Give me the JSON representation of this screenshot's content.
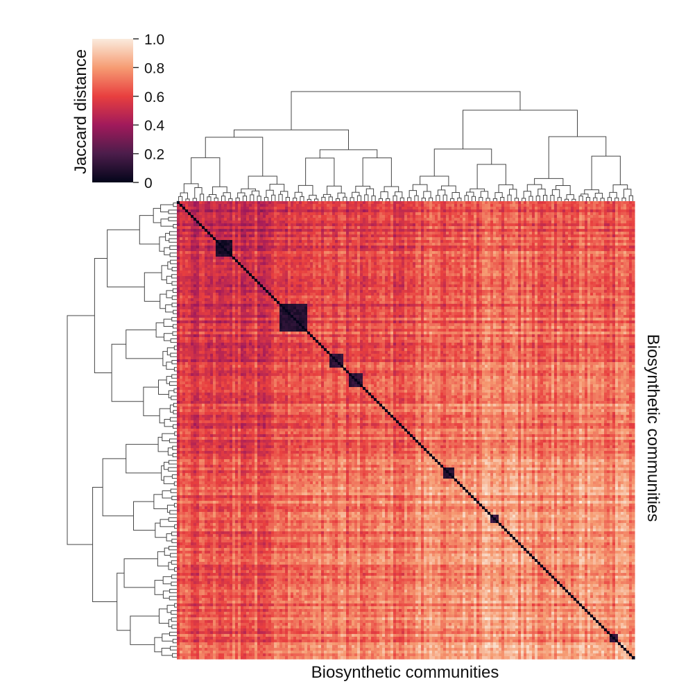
{
  "chart_data": {
    "type": "heatmap",
    "subtype": "clustermap",
    "title": "",
    "xlabel": "Biosynthetic communities",
    "ylabel": "Biosynthetic communities",
    "ylabel_position": "right",
    "colorbar": {
      "label": "Jaccard distance",
      "range": [
        0,
        1.0
      ],
      "ticks": [
        0,
        0.2,
        0.4,
        0.6,
        0.8,
        1.0
      ],
      "tick_labels": [
        "0",
        "0.2",
        "0.4",
        "0.6",
        "0.8",
        "1.0"
      ],
      "placement": "top-left",
      "colormap_stops": [
        "#03051a",
        "#4c1d4b",
        "#a11a5b",
        "#e83f3f",
        "#f69c73",
        "#faebdd"
      ]
    },
    "dendrograms": [
      "top",
      "left"
    ],
    "diagonal_value": 0,
    "blocks": [
      {
        "rows": [
          0.08,
          0.12
        ],
        "cols": [
          0.08,
          0.12
        ],
        "value": 0.02
      },
      {
        "rows": [
          0.22,
          0.28
        ],
        "cols": [
          0.22,
          0.28
        ],
        "value": 0.05
      },
      {
        "rows": [
          0.33,
          0.36
        ],
        "cols": [
          0.33,
          0.36
        ],
        "value": 0.08
      },
      {
        "rows": [
          0.37,
          0.4
        ],
        "cols": [
          0.37,
          0.4
        ],
        "value": 0.08
      },
      {
        "rows": [
          0.58,
          0.6
        ],
        "cols": [
          0.58,
          0.6
        ],
        "value": 0.05
      },
      {
        "rows": [
          0.68,
          0.7
        ],
        "cols": [
          0.68,
          0.7
        ],
        "value": 0.12
      },
      {
        "rows": [
          0.94,
          0.96
        ],
        "cols": [
          0.94,
          0.96
        ],
        "value": 0.1
      }
    ]
  }
}
